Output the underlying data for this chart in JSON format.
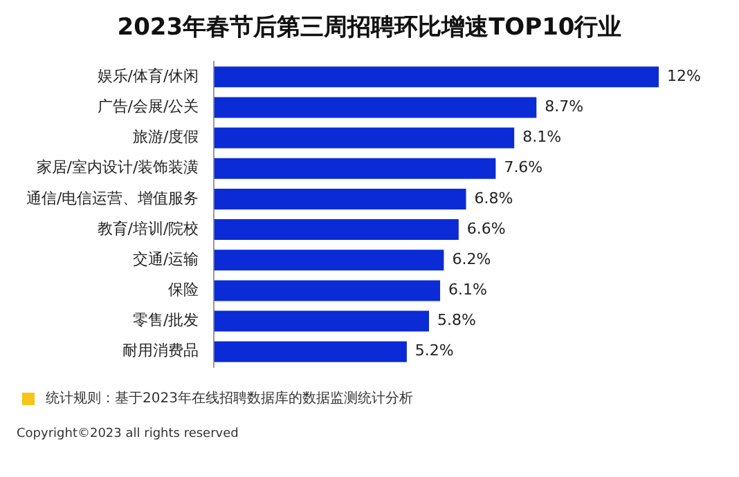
{
  "chart_data": {
    "type": "bar",
    "orientation": "horizontal",
    "title": "2023年春节后第三周招聘环比增速TOP10行业",
    "categories": [
      "娱乐/体育/休闲",
      "广告/会展/公关",
      "旅游/度假",
      "家居/室内设计/装饰装潢",
      "通信/电信运营、增值服务",
      "教育/培训/院校",
      "交通/运输",
      "保险",
      "零售/批发",
      "耐用消费品"
    ],
    "values": [
      12,
      8.7,
      8.1,
      7.6,
      6.8,
      6.6,
      6.2,
      6.1,
      5.8,
      5.2
    ],
    "value_labels": [
      "12%",
      "8.7%",
      "8.1%",
      "7.6%",
      "6.8%",
      "6.6%",
      "6.2%",
      "6.1%",
      "5.8%",
      "5.2%"
    ],
    "color": "#0b2bd6",
    "annotations": [
      "统计规则：基于2023年在线招聘数据库的数据监测统计分析",
      "Copyright©2023 all rights reserved"
    ]
  }
}
